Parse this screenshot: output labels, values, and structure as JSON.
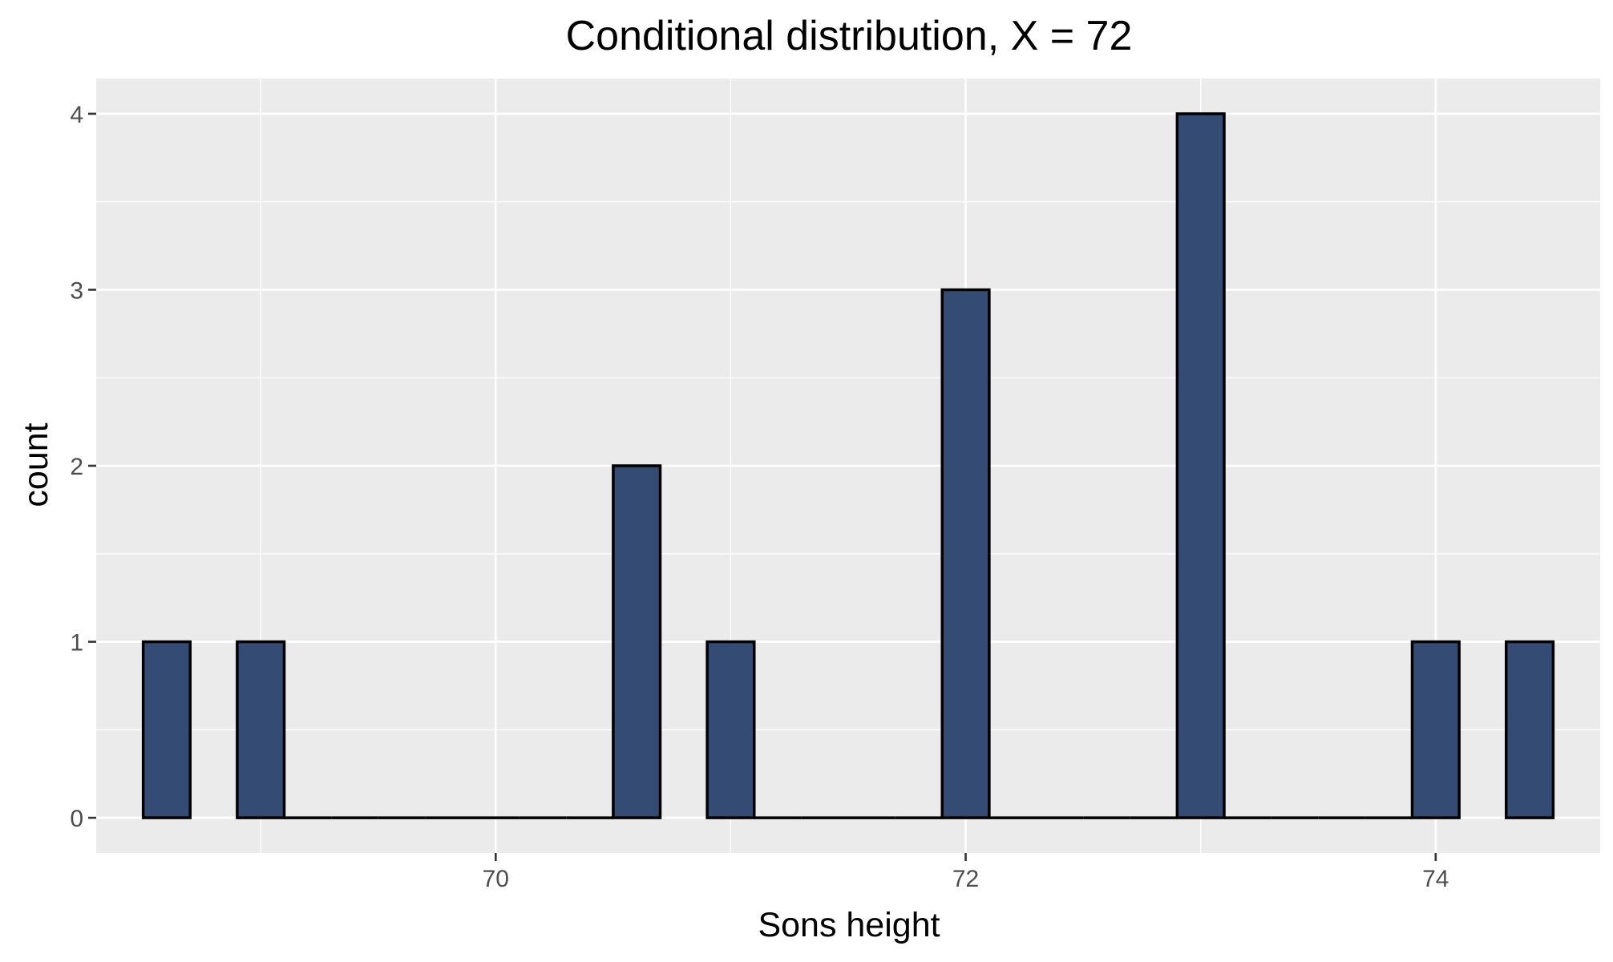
{
  "chart_data": {
    "type": "bar",
    "title": "Conditional distribution, X = 72",
    "xlabel": "Sons height",
    "ylabel": "count",
    "bin_width": 0.2,
    "bins": [
      {
        "x": 68.6,
        "count": 1
      },
      {
        "x": 69.0,
        "count": 1
      },
      {
        "x": 69.2,
        "count": 0
      },
      {
        "x": 69.4,
        "count": 0
      },
      {
        "x": 69.6,
        "count": 0
      },
      {
        "x": 69.8,
        "count": 0
      },
      {
        "x": 70.0,
        "count": 0
      },
      {
        "x": 70.2,
        "count": 0
      },
      {
        "x": 70.4,
        "count": 0
      },
      {
        "x": 70.6,
        "count": 2
      },
      {
        "x": 71.0,
        "count": 1
      },
      {
        "x": 71.2,
        "count": 0
      },
      {
        "x": 71.4,
        "count": 0
      },
      {
        "x": 71.6,
        "count": 0
      },
      {
        "x": 71.8,
        "count": 0
      },
      {
        "x": 72.0,
        "count": 3
      },
      {
        "x": 72.2,
        "count": 0
      },
      {
        "x": 72.4,
        "count": 0
      },
      {
        "x": 72.6,
        "count": 0
      },
      {
        "x": 72.8,
        "count": 0
      },
      {
        "x": 73.0,
        "count": 4
      },
      {
        "x": 73.2,
        "count": 0
      },
      {
        "x": 73.4,
        "count": 0
      },
      {
        "x": 73.6,
        "count": 0
      },
      {
        "x": 73.8,
        "count": 0
      },
      {
        "x": 74.0,
        "count": 1
      },
      {
        "x": 74.4,
        "count": 1
      }
    ],
    "xlim": [
      68.3,
      74.7
    ],
    "ylim": [
      -0.2,
      4.2
    ],
    "x_ticks": [
      70,
      72,
      74
    ],
    "y_ticks": [
      0,
      1,
      2,
      3,
      4
    ],
    "grid": true,
    "bar_fill": "#344c74",
    "bar_outline": "#000000",
    "panel_background": "#ebebeb"
  }
}
